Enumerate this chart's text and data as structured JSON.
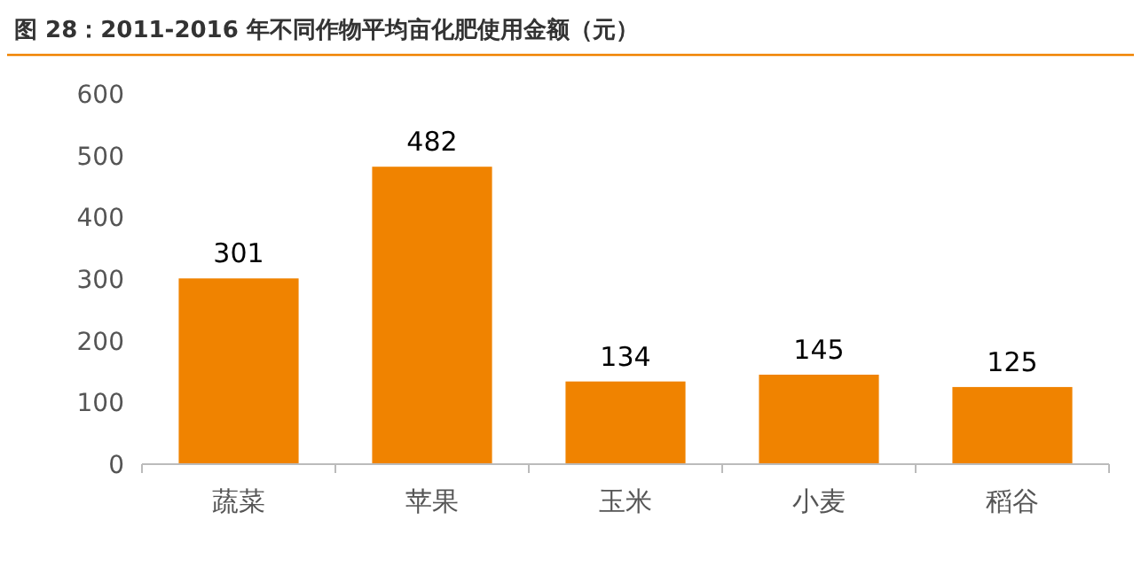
{
  "chart_data": {
    "type": "bar",
    "title": "图 28：2011-2016 年不同作物平均亩化肥使用金额（元）",
    "categories": [
      "蔬菜",
      "苹果",
      "玉米",
      "小麦",
      "稻谷"
    ],
    "values": [
      301,
      482,
      134,
      145,
      125
    ],
    "color": "#f08300",
    "ylim": [
      0,
      600
    ],
    "yticks": [
      0,
      100,
      200,
      300,
      400,
      500,
      600
    ],
    "grid": false,
    "data_labels": true
  }
}
